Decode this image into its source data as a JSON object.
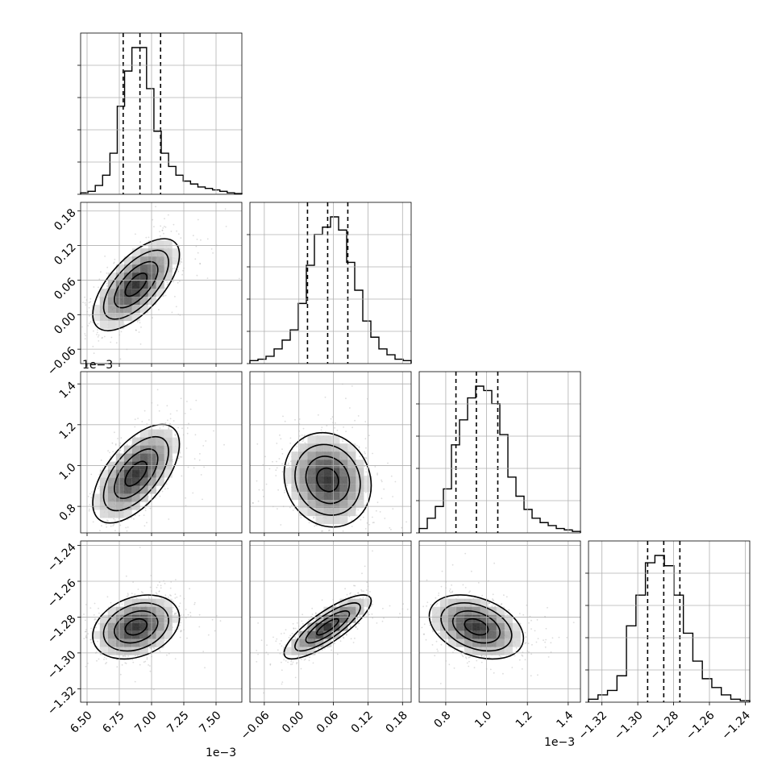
{
  "chart_data": {
    "type": "corner",
    "n_params": 4,
    "offset_text": "1e−3",
    "params": [
      {
        "range": [
          6.45,
          7.7
        ],
        "ticks": [
          6.5,
          6.75,
          7.0,
          7.25,
          7.5
        ],
        "tick_labels": [
          "6.50",
          "6.75",
          "7.00",
          "7.25",
          "7.50"
        ],
        "offset_text": "1e−3",
        "quantiles": [
          6.78,
          6.91,
          7.07
        ],
        "hist": [
          0.01,
          0.02,
          0.06,
          0.13,
          0.28,
          0.6,
          0.84,
          1.0,
          1.0,
          0.72,
          0.43,
          0.28,
          0.19,
          0.13,
          0.09,
          0.07,
          0.05,
          0.04,
          0.03,
          0.02,
          0.01,
          0.005
        ]
      },
      {
        "range": [
          -0.085,
          0.195
        ],
        "ticks": [
          -0.06,
          0.0,
          0.06,
          0.12,
          0.18
        ],
        "tick_labels": [
          "−0.06",
          "0.00",
          "0.06",
          "0.12",
          "0.18"
        ],
        "quantiles": [
          0.015,
          0.05,
          0.085
        ],
        "hist": [
          0.02,
          0.03,
          0.05,
          0.1,
          0.16,
          0.23,
          0.41,
          0.67,
          0.88,
          0.93,
          1.0,
          0.91,
          0.69,
          0.5,
          0.29,
          0.18,
          0.1,
          0.06,
          0.03,
          0.02
        ]
      },
      {
        "range": [
          0.67,
          1.46
        ],
        "ticks": [
          0.8,
          1.0,
          1.2,
          1.4
        ],
        "tick_labels": [
          "0.8",
          "1.0",
          "1.2",
          "1.4"
        ],
        "offset_text": "1e−3",
        "quantiles": [
          0.85,
          0.95,
          1.055
        ],
        "hist": [
          0.03,
          0.1,
          0.18,
          0.3,
          0.6,
          0.77,
          0.92,
          1.0,
          0.97,
          0.88,
          0.67,
          0.38,
          0.25,
          0.16,
          0.1,
          0.07,
          0.05,
          0.03,
          0.02,
          0.01
        ]
      },
      {
        "range": [
          -1.3275,
          -1.2375
        ],
        "ticks": [
          -1.32,
          -1.3,
          -1.28,
          -1.26,
          -1.24
        ],
        "tick_labels": [
          "−1.32",
          "−1.30",
          "−1.28",
          "−1.26",
          "−1.24"
        ],
        "quantiles": [
          -1.2945,
          -1.2855,
          -1.2765
        ],
        "hist": [
          0.02,
          0.05,
          0.08,
          0.18,
          0.52,
          0.73,
          0.95,
          1.0,
          0.93,
          0.73,
          0.47,
          0.28,
          0.16,
          0.1,
          0.05,
          0.02,
          0.01
        ]
      }
    ],
    "pairs": [
      {
        "row": 1,
        "col": 0,
        "mean": [
          6.88,
          0.052
        ],
        "sd": [
          0.16,
          0.038
        ],
        "corr": 0.65
      },
      {
        "row": 2,
        "col": 0,
        "mean": [
          6.88,
          0.96
        ],
        "sd": [
          0.16,
          0.115
        ],
        "corr": 0.6
      },
      {
        "row": 2,
        "col": 1,
        "mean": [
          0.05,
          0.93
        ],
        "sd": [
          0.036,
          0.11
        ],
        "corr": -0.12
      },
      {
        "row": 3,
        "col": 0,
        "mean": [
          6.88,
          -1.2855
        ],
        "sd": [
          0.16,
          0.0085
        ],
        "corr": 0.28
      },
      {
        "row": 3,
        "col": 1,
        "mean": [
          0.05,
          -1.2855
        ],
        "sd": [
          0.036,
          0.0085
        ],
        "corr": 0.82
      },
      {
        "row": 3,
        "col": 2,
        "mean": [
          0.95,
          -1.2855
        ],
        "sd": [
          0.11,
          0.0085
        ],
        "corr": -0.35
      }
    ],
    "contour_levels": [
      "0.5σ",
      "1σ",
      "1.5σ",
      "2σ"
    ],
    "colors": {
      "hist": "#000000",
      "points": "#9a9a9a",
      "grid": "#b0b0b0",
      "frame": "#808080"
    },
    "grid": true
  }
}
